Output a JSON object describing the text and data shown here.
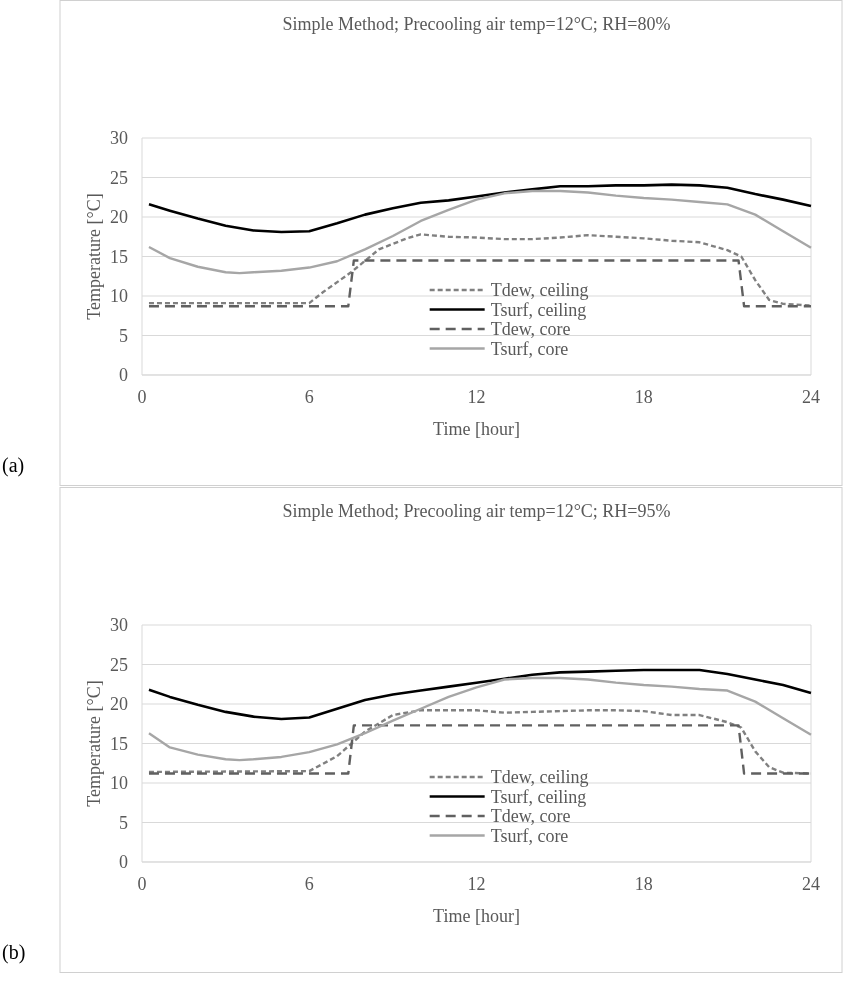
{
  "chart_data": [
    {
      "type": "line",
      "title": "Simple Method; Precooling air temp=12°C; RH=80%",
      "xlabel": "Time [hour]",
      "ylabel": "Temperature [°C]",
      "annotations": [
        "(a)"
      ],
      "xlim": [
        0,
        24
      ],
      "xticks": [
        0,
        6,
        12,
        18,
        24
      ],
      "ylim": [
        0,
        30
      ],
      "yticks": [
        0,
        5,
        10,
        15,
        20,
        25,
        30
      ],
      "grid": "y",
      "legend": "bottom",
      "series": [
        {
          "name": "Tdew, ceiling",
          "color": "#808080",
          "line_style": "dotted",
          "x": [
            0.25,
            6,
            6.5,
            7.5,
            8.5,
            9.5,
            10,
            11,
            12,
            13,
            14,
            15,
            16,
            17,
            18,
            19,
            20,
            21,
            21.5,
            22,
            22.5,
            23,
            24
          ],
          "values": [
            9.1,
            9.1,
            10.5,
            13.0,
            15.9,
            17.3,
            17.8,
            17.5,
            17.4,
            17.2,
            17.2,
            17.4,
            17.7,
            17.5,
            17.3,
            17.0,
            16.8,
            15.8,
            15.0,
            12.0,
            9.5,
            9.0,
            8.8
          ]
        },
        {
          "name": "Tsurf, ceiling",
          "color": "#000000",
          "line_style": "solid",
          "x": [
            0.25,
            1,
            2,
            3,
            4,
            5,
            6,
            7,
            8,
            9,
            10,
            11,
            12,
            13,
            14,
            15,
            16,
            17,
            18,
            19,
            20,
            21,
            22,
            23,
            24
          ],
          "values": [
            21.6,
            20.8,
            19.8,
            18.9,
            18.3,
            18.1,
            18.2,
            19.2,
            20.3,
            21.1,
            21.8,
            22.1,
            22.6,
            23.1,
            23.5,
            23.9,
            23.9,
            24.0,
            24.0,
            24.1,
            24.0,
            23.7,
            22.9,
            22.2,
            21.4
          ]
        },
        {
          "name": "Tdew, core",
          "color": "#606060",
          "line_style": "dashed",
          "x": [
            0.25,
            7.4,
            7.6,
            21.4,
            21.6,
            24
          ],
          "values": [
            8.7,
            8.7,
            14.5,
            14.5,
            8.7,
            8.7
          ]
        },
        {
          "name": "Tsurf, core",
          "color": "#a6a6a6",
          "line_style": "solid",
          "x": [
            0.25,
            1,
            2,
            3,
            3.5,
            4,
            5,
            6,
            7,
            8,
            9,
            10,
            11,
            12,
            13,
            14,
            15,
            16,
            17,
            18,
            19,
            20,
            21,
            22,
            23,
            24
          ],
          "values": [
            16.2,
            14.8,
            13.7,
            13.0,
            12.9,
            13.0,
            13.2,
            13.6,
            14.4,
            15.9,
            17.6,
            19.5,
            20.9,
            22.2,
            23.0,
            23.3,
            23.3,
            23.1,
            22.7,
            22.4,
            22.2,
            21.9,
            21.6,
            20.3,
            18.2,
            16.1
          ]
        }
      ]
    },
    {
      "type": "line",
      "title": "Simple Method; Precooling air temp=12°C; RH=95%",
      "xlabel": "Time [hour]",
      "ylabel": "Temperature [°C]",
      "annotations": [
        "(b)"
      ],
      "xlim": [
        0,
        24
      ],
      "xticks": [
        0,
        6,
        12,
        18,
        24
      ],
      "ylim": [
        0,
        30
      ],
      "yticks": [
        0,
        5,
        10,
        15,
        20,
        25,
        30
      ],
      "grid": "y",
      "legend": "bottom",
      "series": [
        {
          "name": "Tdew, ceiling",
          "color": "#808080",
          "line_style": "dotted",
          "x": [
            0.25,
            6,
            7,
            8,
            9,
            10,
            12,
            13,
            14,
            15,
            16,
            17,
            18,
            19,
            20,
            21,
            21.5,
            22,
            22.5,
            23,
            24
          ],
          "values": [
            11.4,
            11.5,
            13.4,
            16.5,
            18.6,
            19.2,
            19.2,
            18.9,
            19.0,
            19.1,
            19.2,
            19.2,
            19.1,
            18.6,
            18.6,
            17.7,
            17.0,
            14.0,
            12.0,
            11.3,
            11.2
          ]
        },
        {
          "name": "Tsurf, ceiling",
          "color": "#000000",
          "line_style": "solid",
          "x": [
            0.25,
            1,
            2,
            3,
            4,
            5,
            6,
            7,
            8,
            9,
            10,
            11,
            12,
            13,
            14,
            15,
            16,
            17,
            18,
            19,
            20,
            21,
            22,
            23,
            24
          ],
          "values": [
            21.8,
            20.9,
            19.9,
            19.0,
            18.4,
            18.1,
            18.3,
            19.4,
            20.5,
            21.2,
            21.7,
            22.2,
            22.7,
            23.2,
            23.7,
            24.0,
            24.1,
            24.2,
            24.3,
            24.3,
            24.3,
            23.8,
            23.1,
            22.4,
            21.4
          ]
        },
        {
          "name": "Tdew, core",
          "color": "#606060",
          "line_style": "dashed",
          "x": [
            0.25,
            7.4,
            7.6,
            21.4,
            21.6,
            24
          ],
          "values": [
            11.2,
            11.2,
            17.3,
            17.3,
            11.2,
            11.2
          ]
        },
        {
          "name": "Tsurf, core",
          "color": "#a6a6a6",
          "line_style": "solid",
          "x": [
            0.25,
            1,
            2,
            3,
            3.5,
            4,
            5,
            6,
            7,
            8,
            9,
            10,
            11,
            12,
            13,
            14,
            15,
            16,
            17,
            18,
            19,
            20,
            21,
            22,
            23,
            24
          ],
          "values": [
            16.3,
            14.5,
            13.6,
            13.0,
            12.9,
            13.0,
            13.3,
            13.9,
            14.9,
            16.3,
            17.9,
            19.4,
            20.9,
            22.1,
            23.1,
            23.3,
            23.3,
            23.1,
            22.7,
            22.4,
            22.2,
            21.9,
            21.7,
            20.3,
            18.2,
            16.1
          ]
        }
      ]
    }
  ]
}
